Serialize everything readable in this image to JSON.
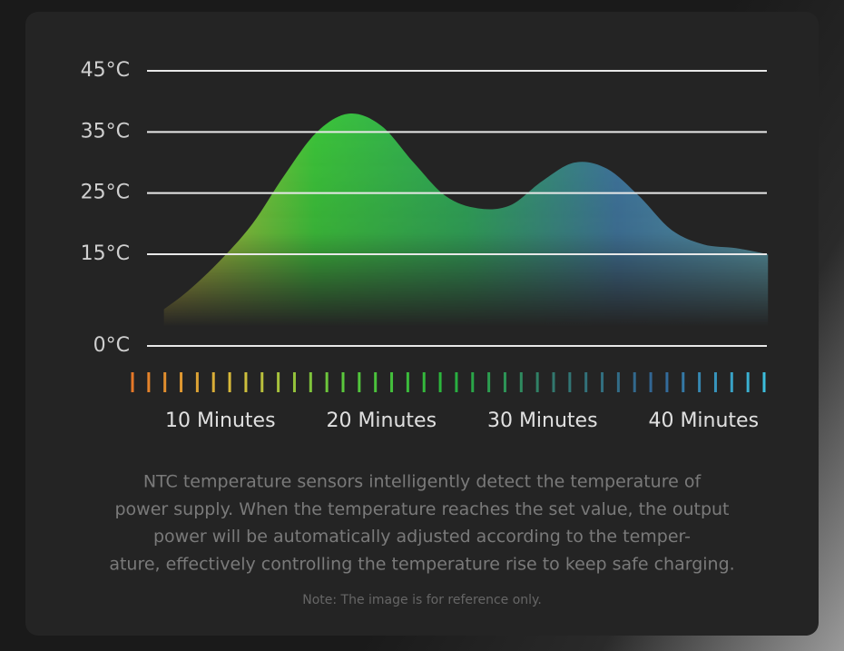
{
  "chart_data": {
    "type": "area",
    "x": [
      6.5,
      8,
      10,
      12,
      14,
      16,
      18,
      20,
      22,
      24,
      26,
      28,
      30,
      32,
      34,
      36,
      38,
      40,
      42,
      44
    ],
    "values": [
      6,
      9,
      14,
      20,
      28,
      35,
      38,
      36,
      30,
      24.5,
      22.5,
      23,
      27,
      30,
      29,
      24.5,
      19,
      16.6,
      16,
      15
    ],
    "colors": [
      "#d6c53c",
      "#3cc83a",
      "#2fa85a",
      "#3f77a0",
      "#5aa0b0"
    ],
    "xlim": [
      5,
      45
    ],
    "xticks": [
      {
        "value": 10,
        "label": "10 Minutes"
      },
      {
        "value": 20,
        "label": "20 Minutes"
      },
      {
        "value": 30,
        "label": "30 Minutes"
      },
      {
        "value": 40,
        "label": "40 Minutes"
      }
    ],
    "ylim": [
      0,
      45
    ],
    "yticks": [
      {
        "value": 0,
        "label": "0°C"
      },
      {
        "value": 15,
        "label": "15°C"
      },
      {
        "value": 25,
        "label": "25°C"
      },
      {
        "value": 35,
        "label": "35°C"
      },
      {
        "value": 45,
        "label": "45°C"
      }
    ],
    "grid": true,
    "description": [
      "NTC temperature sensors intelligently detect the temperature of",
      "power supply. When the temperature reaches the set value, the output",
      "power will be automatically adjusted according to the temper-",
      "ature, effectively controlling the temperature rise to keep safe charging."
    ],
    "note": "Note: The image is for reference only."
  }
}
